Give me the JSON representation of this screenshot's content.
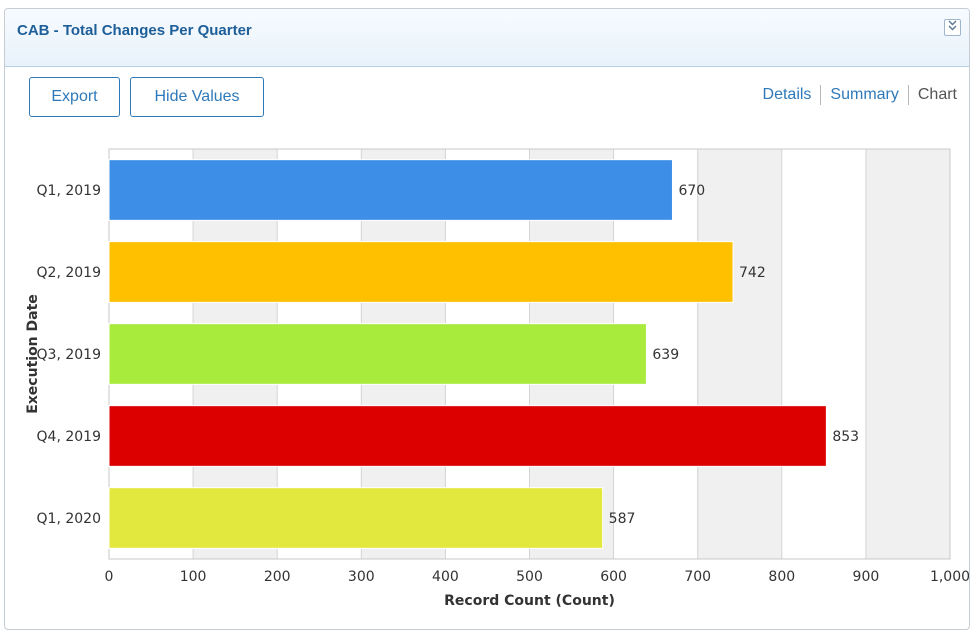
{
  "panel": {
    "title": "CAB - Total Changes Per Quarter",
    "collapse_icon": "double-chevron-down-icon"
  },
  "toolbar": {
    "export_label": "Export",
    "hide_values_label": "Hide Values"
  },
  "views": {
    "details": "Details",
    "summary": "Summary",
    "chart": "Chart",
    "active": "Chart"
  },
  "chart_data": {
    "type": "bar",
    "orientation": "horizontal",
    "categories": [
      "Q1, 2019",
      "Q2, 2019",
      "Q3, 2019",
      "Q4, 2019",
      "Q1, 2020"
    ],
    "values": [
      670,
      742,
      639,
      853,
      587
    ],
    "colors": [
      "#3d8ee6",
      "#ffc000",
      "#a8eb3c",
      "#dd0000",
      "#e2e83d"
    ],
    "xlabel": "Record Count (Count)",
    "ylabel": "Execution Date",
    "xlim": [
      0,
      1000
    ],
    "xticks": [
      0,
      100,
      200,
      300,
      400,
      500,
      600,
      700,
      800,
      900,
      1000
    ],
    "xtick_labels": [
      "0",
      "100",
      "200",
      "300",
      "400",
      "500",
      "600",
      "700",
      "800",
      "900",
      "1,000"
    ],
    "data_labels": true,
    "grid": "alternating-bands"
  }
}
